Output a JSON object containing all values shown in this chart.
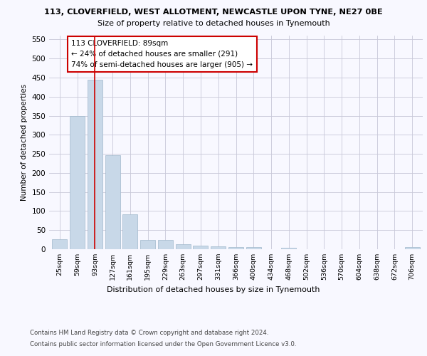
{
  "title_line1": "113, CLOVERFIELD, WEST ALLOTMENT, NEWCASTLE UPON TYNE, NE27 0BE",
  "title_line2": "Size of property relative to detached houses in Tynemouth",
  "xlabel": "Distribution of detached houses by size in Tynemouth",
  "ylabel": "Number of detached properties",
  "bar_color": "#c8d8e8",
  "bar_edge_color": "#a0b8cc",
  "categories": [
    "25sqm",
    "59sqm",
    "93sqm",
    "127sqm",
    "161sqm",
    "195sqm",
    "229sqm",
    "263sqm",
    "297sqm",
    "331sqm",
    "366sqm",
    "400sqm",
    "434sqm",
    "468sqm",
    "502sqm",
    "536sqm",
    "570sqm",
    "604sqm",
    "638sqm",
    "672sqm",
    "706sqm"
  ],
  "values": [
    27,
    350,
    445,
    247,
    92,
    24,
    24,
    13,
    10,
    8,
    6,
    6,
    0,
    4,
    0,
    0,
    0,
    0,
    0,
    0,
    5
  ],
  "ylim": [
    0,
    560
  ],
  "yticks": [
    0,
    50,
    100,
    150,
    200,
    250,
    300,
    350,
    400,
    450,
    500,
    550
  ],
  "vline_x": 2,
  "vline_color": "#cc0000",
  "annotation_text_line1": "113 CLOVERFIELD: 89sqm",
  "annotation_text_line2": "← 24% of detached houses are smaller (291)",
  "annotation_text_line3": "74% of semi-detached houses are larger (905) →",
  "annotation_fontsize": 7.5,
  "footer_line1": "Contains HM Land Registry data © Crown copyright and database right 2024.",
  "footer_line2": "Contains public sector information licensed under the Open Government Licence v3.0.",
  "background_color": "#f8f8ff",
  "grid_color": "#c8c8d8"
}
